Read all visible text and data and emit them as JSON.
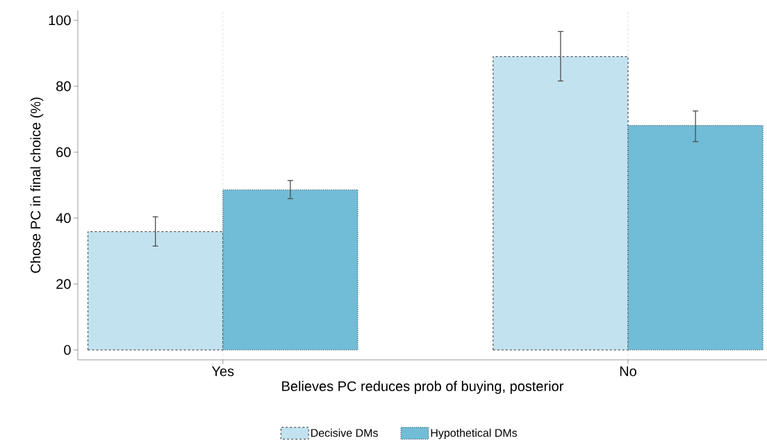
{
  "chart_data": {
    "type": "bar",
    "xlabel": "Believes PC reduces prob of buying, posterior",
    "ylabel": "Chose PC in final choice (%)",
    "categories": [
      "Yes",
      "No"
    ],
    "series": [
      {
        "name": "Decisive DMs",
        "color": "#c2e2ef",
        "line_style": "dashed",
        "values": [
          35.9,
          89.0
        ],
        "errors": [
          [
            31.5,
            40.4
          ],
          [
            81.6,
            96.6
          ]
        ]
      },
      {
        "name": "Hypothetical DMs",
        "color": "#71bcd7",
        "line_style": "dotted",
        "values": [
          48.6,
          68.1
        ],
        "errors": [
          [
            45.9,
            51.4
          ],
          [
            63.2,
            72.5
          ]
        ]
      }
    ],
    "ylim": [
      -3,
      103
    ],
    "yticks": [
      0,
      20,
      40,
      60,
      80,
      100
    ],
    "grid": "x",
    "legend": "bottom"
  }
}
